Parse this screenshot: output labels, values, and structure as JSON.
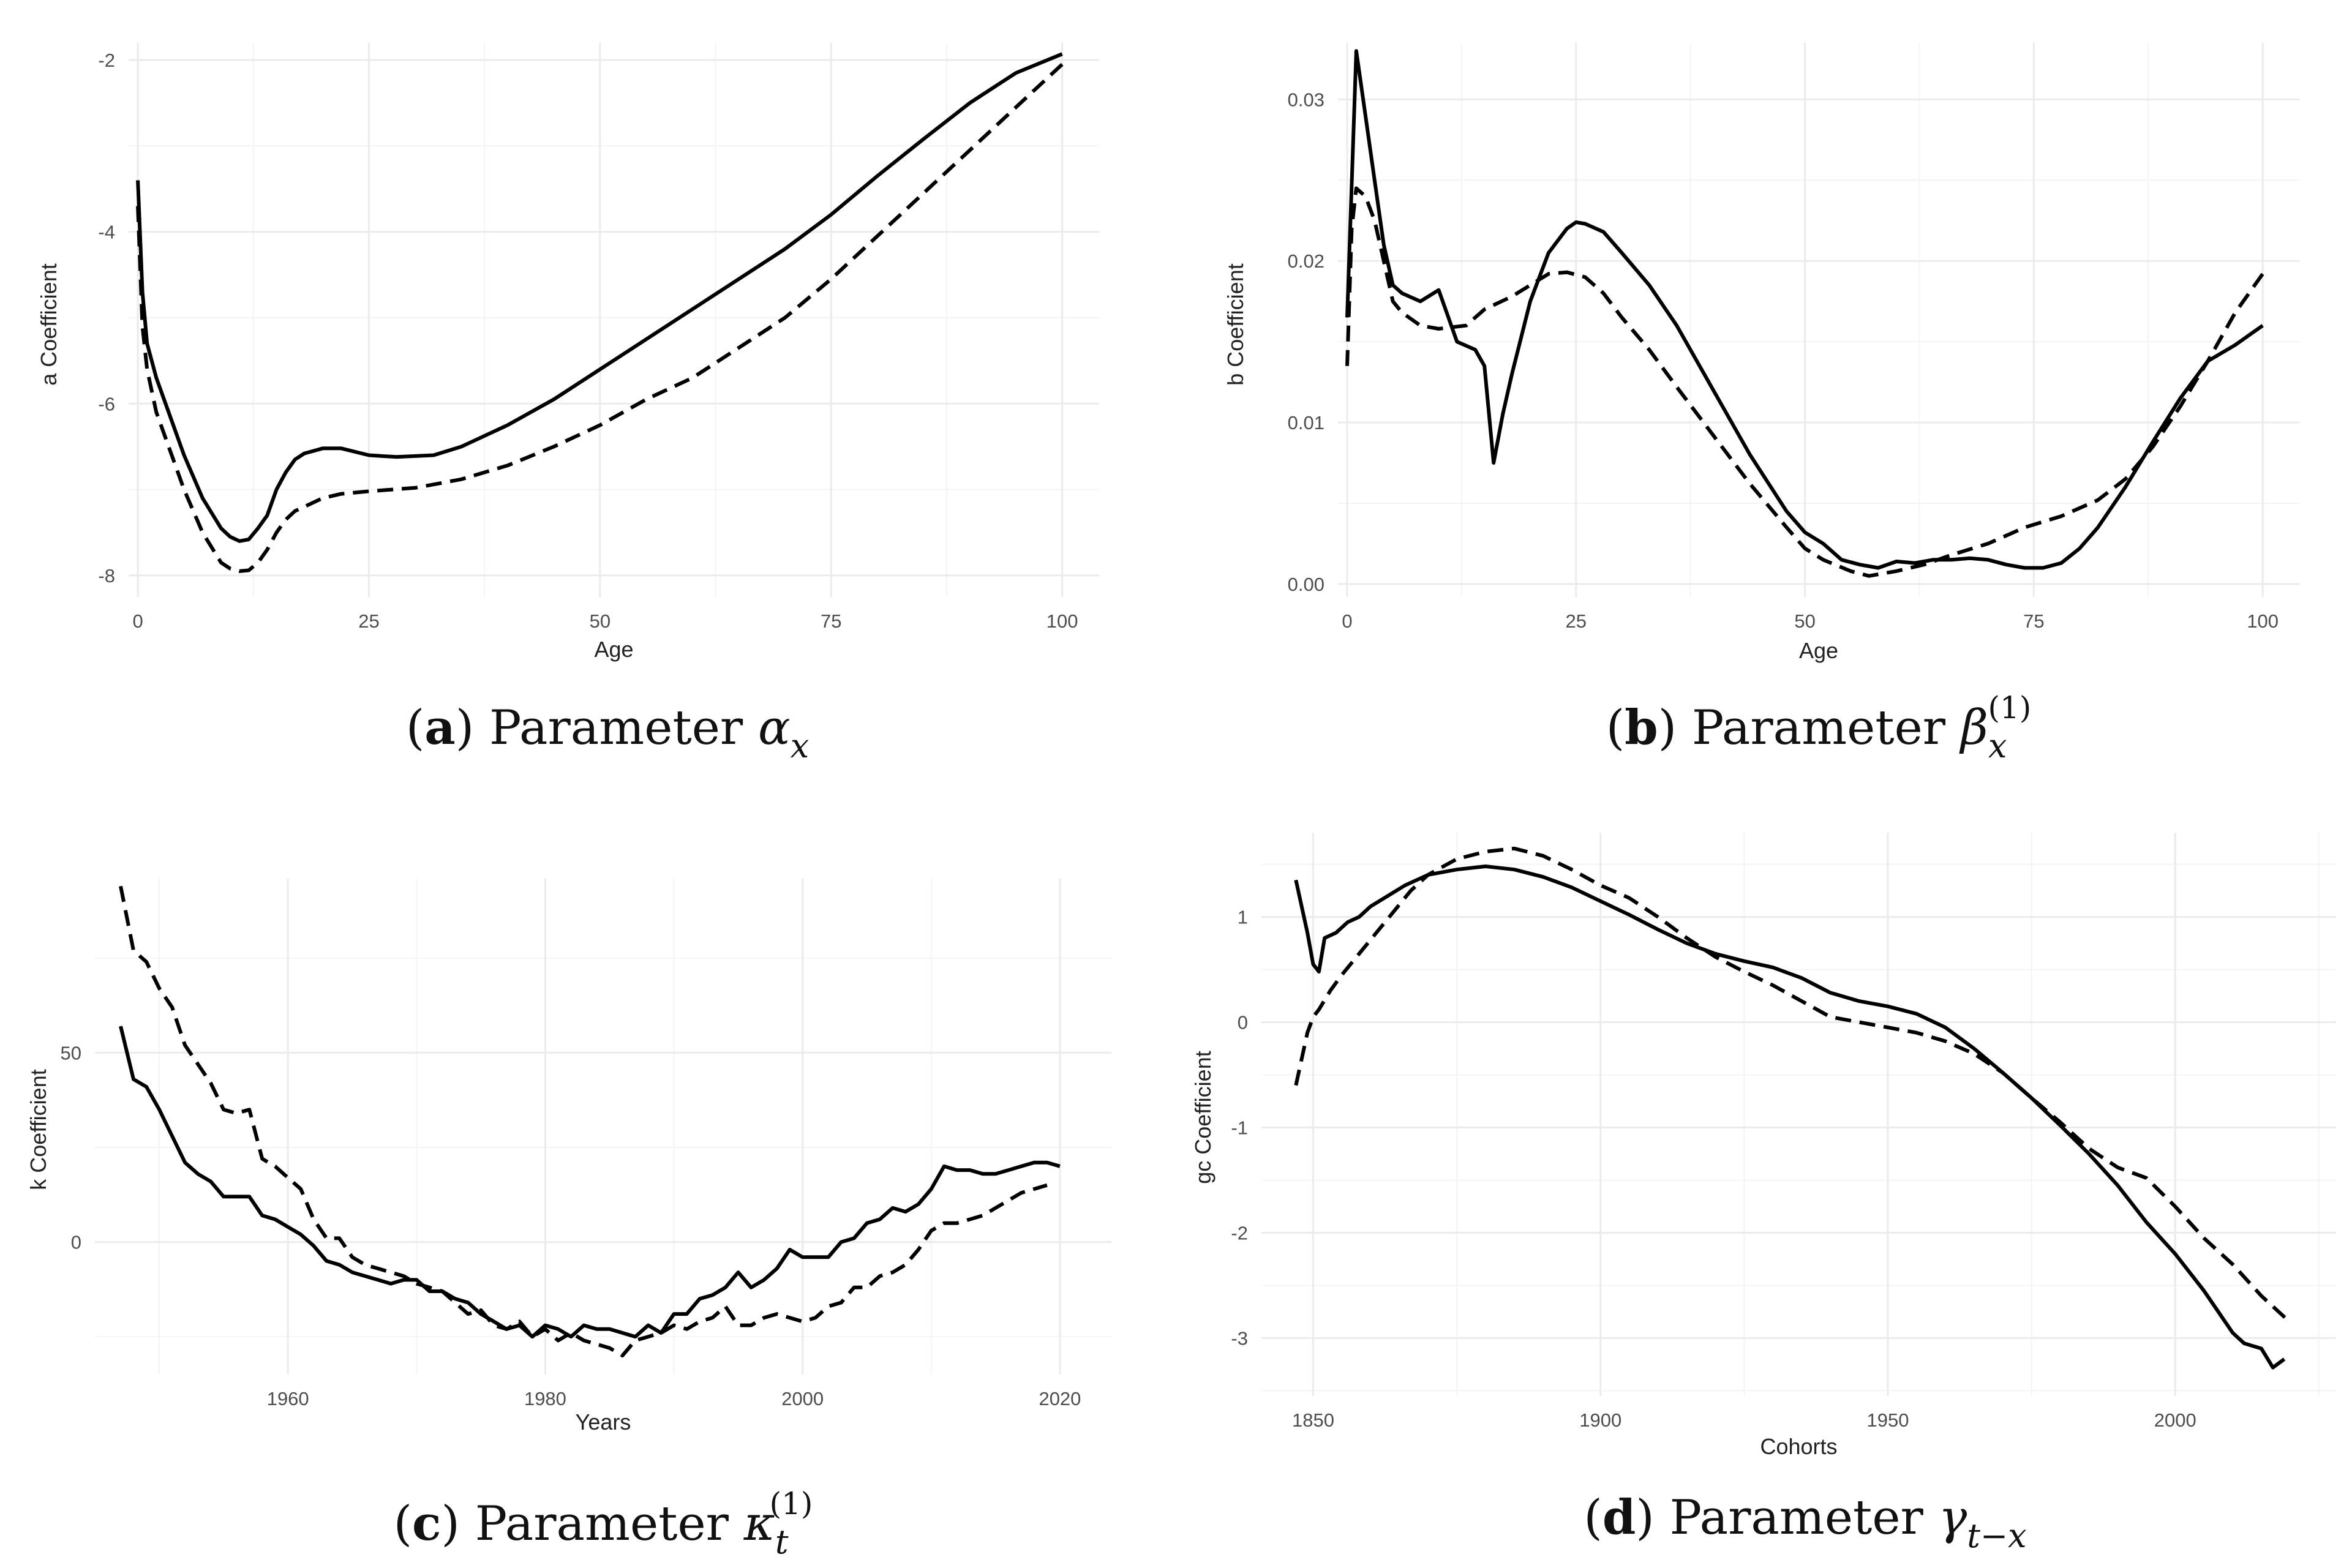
{
  "colors": {
    "line": "#000000",
    "grid": "#ebebeb",
    "tick_text": "#4d4d4d"
  },
  "chart_data": [
    {
      "id": "a",
      "type": "line",
      "caption": {
        "label": "a",
        "prefix": "(",
        "suffix": ") Parameter",
        "symbol": "α",
        "subscript": "x",
        "superscript": ""
      },
      "xlabel": "Age",
      "ylabel": "a Coefficient",
      "xlim": [
        -1,
        104
      ],
      "ylim": [
        -8.25,
        -1.8
      ],
      "xticks": [
        0,
        25,
        50,
        75,
        100
      ],
      "xtick_labels": [
        "0",
        "25",
        "50",
        "75",
        "100"
      ],
      "yticks": [
        -8,
        -6,
        -4,
        -2
      ],
      "ytick_labels": [
        "-8",
        "-6",
        "-4",
        "-2"
      ],
      "series": [
        {
          "name": "solid",
          "dash": "solid",
          "x": [
            0,
            0.5,
            1,
            2,
            3,
            5,
            7,
            9,
            10,
            11,
            12,
            13,
            14,
            15,
            16,
            17,
            18,
            20,
            22,
            25,
            28,
            32,
            35,
            40,
            45,
            50,
            55,
            60,
            65,
            70,
            75,
            80,
            85,
            90,
            95,
            100
          ],
          "y": [
            -3.4,
            -4.7,
            -5.3,
            -5.7,
            -6.0,
            -6.6,
            -7.1,
            -7.45,
            -7.55,
            -7.6,
            -7.58,
            -7.45,
            -7.3,
            -7.0,
            -6.8,
            -6.65,
            -6.58,
            -6.52,
            -6.52,
            -6.6,
            -6.62,
            -6.6,
            -6.5,
            -6.25,
            -5.95,
            -5.6,
            -5.25,
            -4.9,
            -4.55,
            -4.2,
            -3.8,
            -3.35,
            -2.92,
            -2.5,
            -2.15,
            -1.93
          ]
        },
        {
          "name": "dashed",
          "dash": "dashed",
          "x": [
            0,
            0.5,
            1,
            2,
            3,
            5,
            7,
            9,
            10,
            11,
            12,
            13,
            14,
            15,
            16,
            17,
            18,
            20,
            22,
            25,
            30,
            35,
            40,
            45,
            50,
            55,
            60,
            65,
            70,
            75,
            80,
            85,
            90,
            95,
            100
          ],
          "y": [
            -3.7,
            -5.1,
            -5.6,
            -6.1,
            -6.4,
            -7.0,
            -7.5,
            -7.85,
            -7.92,
            -7.95,
            -7.94,
            -7.85,
            -7.7,
            -7.5,
            -7.35,
            -7.25,
            -7.2,
            -7.1,
            -7.05,
            -7.02,
            -6.98,
            -6.88,
            -6.72,
            -6.5,
            -6.25,
            -5.95,
            -5.7,
            -5.35,
            -5.0,
            -4.55,
            -4.05,
            -3.55,
            -3.05,
            -2.55,
            -2.05
          ]
        }
      ]
    },
    {
      "id": "b",
      "type": "line",
      "caption": {
        "label": "b",
        "prefix": "(",
        "suffix": ") Parameter",
        "symbol": "β",
        "subscript": "x",
        "superscript": "(1)"
      },
      "xlabel": "Age",
      "ylabel": "b Coefficient",
      "xlim": [
        -1,
        104
      ],
      "ylim": [
        -0.0008,
        0.0335
      ],
      "xticks": [
        0,
        25,
        50,
        75,
        100
      ],
      "xtick_labels": [
        "0",
        "25",
        "50",
        "75",
        "100"
      ],
      "yticks": [
        0.0,
        0.01,
        0.02,
        0.03
      ],
      "ytick_labels": [
        "0.00",
        "0.01",
        "0.02",
        "0.03"
      ],
      "series": [
        {
          "name": "solid",
          "dash": "solid",
          "x": [
            0,
            1,
            2,
            3,
            4,
            5,
            6,
            8,
            10,
            12,
            14,
            15,
            16,
            17,
            18,
            20,
            22,
            24,
            25,
            26,
            28,
            30,
            33,
            36,
            40,
            44,
            48,
            50,
            52,
            54,
            56,
            58,
            60,
            62,
            64,
            66,
            68,
            70,
            72,
            74,
            76,
            78,
            80,
            82,
            85,
            88,
            91,
            94,
            97,
            100
          ],
          "y": [
            0.0165,
            0.033,
            0.029,
            0.025,
            0.021,
            0.0185,
            0.018,
            0.0175,
            0.0182,
            0.015,
            0.0145,
            0.0135,
            0.0075,
            0.0105,
            0.013,
            0.0175,
            0.0205,
            0.022,
            0.0224,
            0.0223,
            0.0218,
            0.0205,
            0.0185,
            0.016,
            0.012,
            0.008,
            0.0045,
            0.0032,
            0.0025,
            0.0015,
            0.0012,
            0.001,
            0.0014,
            0.0013,
            0.0015,
            0.0015,
            0.0016,
            0.0015,
            0.0012,
            0.001,
            0.001,
            0.0013,
            0.0022,
            0.0035,
            0.006,
            0.0088,
            0.0115,
            0.0138,
            0.0148,
            0.016
          ]
        },
        {
          "name": "dashed",
          "dash": "dashed",
          "x": [
            0,
            0.5,
            1,
            2,
            3,
            4,
            5,
            6,
            8,
            10,
            13,
            15,
            18,
            20,
            22,
            24,
            26,
            28,
            30,
            33,
            36,
            40,
            44,
            48,
            50,
            52,
            55,
            57,
            60,
            63,
            66,
            70,
            74,
            78,
            82,
            85,
            88,
            91,
            94,
            97,
            100
          ],
          "y": [
            0.0135,
            0.022,
            0.0245,
            0.024,
            0.0225,
            0.02,
            0.0175,
            0.0168,
            0.016,
            0.0158,
            0.016,
            0.017,
            0.0178,
            0.0185,
            0.0192,
            0.0193,
            0.019,
            0.018,
            0.0165,
            0.0145,
            0.0122,
            0.0092,
            0.0062,
            0.0035,
            0.0022,
            0.0015,
            0.0008,
            0.0005,
            0.0008,
            0.0012,
            0.0018,
            0.0025,
            0.0035,
            0.0042,
            0.0052,
            0.0065,
            0.0085,
            0.011,
            0.0138,
            0.0168,
            0.0192
          ]
        }
      ]
    },
    {
      "id": "c",
      "type": "line",
      "caption": {
        "label": "c",
        "prefix": "(",
        "suffix": ") Parameter",
        "symbol": "κ",
        "subscript": "t",
        "superscript": "(1)"
      },
      "xlabel": "Years",
      "ylabel": "k Coefficient",
      "xlim": [
        1945,
        2024
      ],
      "ylim": [
        -35,
        96
      ],
      "xticks": [
        1960,
        1980,
        2000,
        2020
      ],
      "xtick_labels": [
        "1960",
        "1980",
        "2000",
        "2020"
      ],
      "yticks": [
        0,
        50
      ],
      "ytick_labels": [
        "0",
        "50"
      ],
      "series": [
        {
          "name": "solid",
          "dash": "solid",
          "x": [
            1947,
            1948,
            1949,
            1950,
            1951,
            1952,
            1953,
            1954,
            1955,
            1956,
            1957,
            1958,
            1959,
            1960,
            1961,
            1962,
            1963,
            1964,
            1965,
            1966,
            1967,
            1968,
            1969,
            1970,
            1971,
            1972,
            1973,
            1974,
            1975,
            1976,
            1977,
            1978,
            1979,
            1980,
            1981,
            1982,
            1983,
            1984,
            1985,
            1986,
            1987,
            1988,
            1989,
            1990,
            1991,
            1992,
            1993,
            1994,
            1995,
            1996,
            1997,
            1998,
            1999,
            2000,
            2001,
            2002,
            2003,
            2004,
            2005,
            2006,
            2007,
            2008,
            2009,
            2010,
            2011,
            2012,
            2013,
            2014,
            2015,
            2016,
            2017,
            2018,
            2019,
            2020
          ],
          "y": [
            57,
            43,
            41,
            35,
            28,
            21,
            18,
            16,
            12,
            12,
            12,
            7,
            6,
            4,
            2,
            -1,
            -5,
            -6,
            -8,
            -9,
            -10,
            -11,
            -10,
            -10,
            -13,
            -13,
            -15,
            -16,
            -19,
            -21,
            -23,
            -22,
            -25,
            -22,
            -23,
            -25,
            -22,
            -23,
            -23,
            -24,
            -25,
            -22,
            -24,
            -19,
            -19,
            -15,
            -14,
            -12,
            -8,
            -12,
            -10,
            -7,
            -2,
            -4,
            -4,
            -4,
            0,
            1,
            5,
            6,
            9,
            8,
            10,
            14,
            20,
            19,
            19,
            18,
            18,
            19,
            20,
            21,
            21,
            20
          ]
        },
        {
          "name": "dashed",
          "dash": "dashed",
          "x": [
            1947,
            1948,
            1949,
            1950,
            1951,
            1952,
            1953,
            1954,
            1955,
            1956,
            1957,
            1958,
            1959,
            1960,
            1961,
            1962,
            1963,
            1964,
            1965,
            1966,
            1967,
            1968,
            1969,
            1970,
            1971,
            1972,
            1973,
            1974,
            1975,
            1976,
            1977,
            1978,
            1979,
            1980,
            1981,
            1982,
            1983,
            1984,
            1985,
            1986,
            1987,
            1988,
            1989,
            1990,
            1991,
            1992,
            1993,
            1994,
            1995,
            1996,
            1997,
            1998,
            1999,
            2000,
            2001,
            2002,
            2003,
            2004,
            2005,
            2006,
            2007,
            2008,
            2009,
            2010,
            2011,
            2012,
            2013,
            2014,
            2015,
            2016,
            2017,
            2018,
            2019
          ],
          "y": [
            94,
            77,
            74,
            67,
            62,
            52,
            47,
            42,
            35,
            34,
            35,
            22,
            20,
            17,
            14,
            6,
            1,
            1,
            -4,
            -6,
            -7,
            -8,
            -9,
            -11,
            -12,
            -13,
            -16,
            -19,
            -18,
            -22,
            -23,
            -21,
            -25,
            -23,
            -26,
            -24,
            -26,
            -27,
            -28,
            -30,
            -26,
            -25,
            -24,
            -22,
            -23,
            -21,
            -20,
            -17,
            -22,
            -22,
            -20,
            -19,
            -20,
            -21,
            -20,
            -17,
            -16,
            -12,
            -12,
            -9,
            -8,
            -6,
            -2,
            3,
            5,
            5,
            6,
            7,
            9,
            11,
            13,
            14,
            15
          ]
        }
      ]
    },
    {
      "id": "d",
      "type": "line",
      "caption": {
        "label": "d",
        "prefix": "(",
        "suffix": ") Parameter",
        "symbol": "γ",
        "subscript": "t−x",
        "superscript": ""
      },
      "xlabel": "Cohorts",
      "ylabel": "gc Coefficient",
      "xlim": [
        1841,
        2028
      ],
      "ylim": [
        -3.55,
        1.8
      ],
      "xticks": [
        1850,
        1900,
        1950,
        2000
      ],
      "xtick_labels": [
        "1850",
        "1900",
        "1950",
        "2000"
      ],
      "yticks": [
        -3,
        -2,
        -1,
        0,
        1
      ],
      "ytick_labels": [
        "-3",
        "-2",
        "-1",
        "0",
        "1"
      ],
      "series": [
        {
          "name": "solid",
          "dash": "solid",
          "x": [
            1847,
            1849,
            1850,
            1851,
            1852,
            1854,
            1856,
            1858,
            1860,
            1863,
            1866,
            1870,
            1875,
            1880,
            1885,
            1890,
            1895,
            1900,
            1905,
            1910,
            1915,
            1920,
            1925,
            1930,
            1935,
            1940,
            1945,
            1950,
            1955,
            1960,
            1965,
            1970,
            1975,
            1980,
            1985,
            1990,
            1995,
            2000,
            2005,
            2010,
            2012,
            2015,
            2017,
            2019
          ],
          "y": [
            1.35,
            0.85,
            0.55,
            0.48,
            0.8,
            0.85,
            0.95,
            1.0,
            1.1,
            1.2,
            1.3,
            1.4,
            1.45,
            1.48,
            1.45,
            1.38,
            1.28,
            1.15,
            1.02,
            0.88,
            0.75,
            0.65,
            0.58,
            0.52,
            0.42,
            0.28,
            0.2,
            0.15,
            0.08,
            -0.05,
            -0.25,
            -0.48,
            -0.72,
            -0.98,
            -1.25,
            -1.55,
            -1.9,
            -2.2,
            -2.55,
            -2.95,
            -3.05,
            -3.1,
            -3.28,
            -3.2
          ]
        },
        {
          "name": "dashed",
          "dash": "dashed",
          "x": [
            1847,
            1849,
            1850,
            1851,
            1853,
            1855,
            1858,
            1861,
            1864,
            1867,
            1870,
            1875,
            1880,
            1885,
            1890,
            1895,
            1900,
            1905,
            1910,
            1915,
            1920,
            1925,
            1930,
            1935,
            1940,
            1945,
            1950,
            1955,
            1960,
            1965,
            1970,
            1975,
            1980,
            1985,
            1990,
            1995,
            2000,
            2005,
            2010,
            2015,
            2020
          ],
          "y": [
            -0.6,
            -0.1,
            0.05,
            0.12,
            0.3,
            0.45,
            0.65,
            0.85,
            1.05,
            1.25,
            1.4,
            1.55,
            1.62,
            1.65,
            1.58,
            1.45,
            1.3,
            1.18,
            1.0,
            0.8,
            0.62,
            0.48,
            0.35,
            0.2,
            0.05,
            0.0,
            -0.05,
            -0.1,
            -0.18,
            -0.3,
            -0.48,
            -0.72,
            -0.95,
            -1.2,
            -1.38,
            -1.48,
            -1.75,
            -2.05,
            -2.3,
            -2.6,
            -2.85
          ]
        }
      ]
    }
  ]
}
